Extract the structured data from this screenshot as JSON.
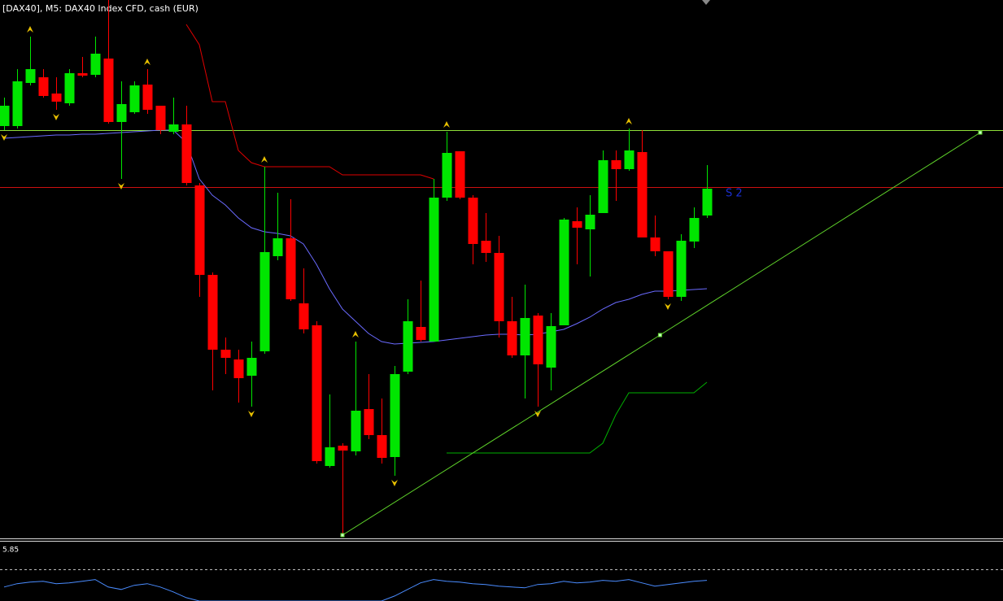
{
  "chart_data": {
    "type": "candlestick",
    "title": "[DAX40], M5:  DAX40 Index CFD, cash (EUR)",
    "level_label": "S 2",
    "ylim": [
      0,
      660
    ],
    "up_color": "#00e600",
    "down_color": "#ff0000",
    "candles": {
      "open": [
        505,
        505,
        558,
        565,
        545,
        533,
        570,
        568,
        588,
        510,
        522,
        556,
        530,
        498,
        507,
        432,
        322,
        230,
        218,
        198,
        228,
        345,
        367,
        287,
        260,
        87,
        112,
        105,
        157,
        125,
        98,
        203,
        258,
        240,
        417,
        474,
        417,
        364,
        349,
        265,
        223,
        272,
        208,
        260,
        388,
        378,
        398,
        463,
        452,
        473,
        368,
        351,
        295,
        363,
        395
      ],
      "high": [
        540,
        575,
        615,
        575,
        565,
        575,
        590,
        615,
        660,
        560,
        560,
        575,
        530,
        540,
        530,
        435,
        325,
        245,
        230,
        240,
        455,
        423,
        415,
        330,
        265,
        175,
        115,
        240,
        200,
        170,
        210,
        292,
        315,
        440,
        498,
        474,
        420,
        398,
        370,
        295,
        310,
        275,
        275,
        392,
        405,
        420,
        475,
        475,
        502,
        500,
        395,
        351,
        372,
        405,
        457
      ],
      "low": [
        500,
        502,
        555,
        540,
        525,
        530,
        565,
        565,
        508,
        440,
        520,
        520,
        495,
        495,
        432,
        295,
        180,
        200,
        165,
        160,
        225,
        340,
        290,
        250,
        90,
        85,
        2,
        100,
        120,
        90,
        75,
        200,
        240,
        240,
        413,
        415,
        335,
        338,
        245,
        220,
        170,
        160,
        180,
        260,
        335,
        320,
        398,
        413,
        450,
        368,
        345,
        292,
        290,
        355,
        392
      ],
      "close": [
        530,
        560,
        575,
        542,
        535,
        570,
        567,
        594,
        510,
        532,
        555,
        525,
        500,
        507,
        435,
        322,
        230,
        220,
        195,
        220,
        350,
        367,
        292,
        255,
        93,
        110,
        106,
        155,
        125,
        97,
        200,
        265,
        242,
        417,
        472,
        417,
        360,
        349,
        265,
        223,
        269,
        212,
        259,
        390,
        380,
        396,
        463,
        452,
        475,
        368,
        351,
        295,
        364,
        392,
        428
      ]
    },
    "series": [
      {
        "color": "#6a6aff",
        "values": [
          490,
          491,
          492,
          493,
          494,
          494,
          495,
          495,
          496,
          497,
          498,
          499,
          500,
          500,
          485,
          440,
          420,
          408,
          392,
          380,
          375,
          373,
          370,
          360,
          335,
          305,
          280,
          265,
          250,
          240,
          237,
          238,
          239,
          240,
          242,
          244,
          246,
          248,
          249,
          249,
          248,
          249,
          252,
          255,
          262,
          270,
          280,
          288,
          292,
          298,
          302,
          302,
          303,
          304,
          305
        ]
      },
      {
        "color": "#e00000",
        "values": [
          null,
          null,
          null,
          null,
          null,
          null,
          null,
          null,
          null,
          null,
          null,
          null,
          null,
          null,
          630,
          605,
          535,
          535,
          475,
          460,
          455,
          455,
          455,
          455,
          455,
          455,
          445,
          445,
          445,
          445,
          445,
          445,
          445,
          440,
          null,
          null,
          null,
          null,
          null,
          null,
          null,
          null,
          null,
          null,
          null,
          null,
          null,
          null,
          null,
          null,
          null,
          null,
          null,
          null,
          null
        ]
      },
      {
        "color": "#00b000",
        "values": [
          null,
          null,
          null,
          null,
          null,
          null,
          null,
          null,
          null,
          null,
          null,
          null,
          null,
          null,
          null,
          null,
          null,
          null,
          null,
          null,
          null,
          null,
          null,
          null,
          null,
          null,
          null,
          null,
          null,
          null,
          null,
          null,
          null,
          null,
          103,
          103,
          103,
          103,
          103,
          103,
          103,
          103,
          103,
          103,
          103,
          103,
          115,
          150,
          177,
          177,
          177,
          177,
          177,
          177,
          190
        ]
      }
    ],
    "levels": [
      {
        "value": 500,
        "color": "#8fe03a"
      },
      {
        "value": 430,
        "color": "#cc1010"
      }
    ],
    "trendline": {
      "color": "#5fd42a",
      "x": [
        26,
        50.4,
        75
      ],
      "values": [
        2,
        248,
        497
      ]
    },
    "fractals_up": [
      2,
      11,
      20,
      27,
      34,
      48
    ],
    "fractals_down": [
      0,
      4,
      9,
      19,
      30,
      41,
      51
    ],
    "indicator": {
      "label": "5.85",
      "ylim": [
        0,
        70
      ],
      "level": 38,
      "color": "#4a8cff",
      "values": [
        17,
        21,
        23,
        24,
        21,
        22,
        24,
        26,
        17,
        14,
        19,
        21,
        17,
        11,
        4,
        0,
        0,
        0,
        0,
        0,
        0,
        0,
        0,
        0,
        0,
        0,
        0,
        0,
        0,
        0,
        6,
        14,
        22,
        26,
        24,
        23,
        21,
        20,
        18,
        17,
        16,
        20,
        21,
        24,
        22,
        23,
        25,
        24,
        26,
        22,
        18,
        20,
        22,
        24,
        25
      ]
    }
  }
}
